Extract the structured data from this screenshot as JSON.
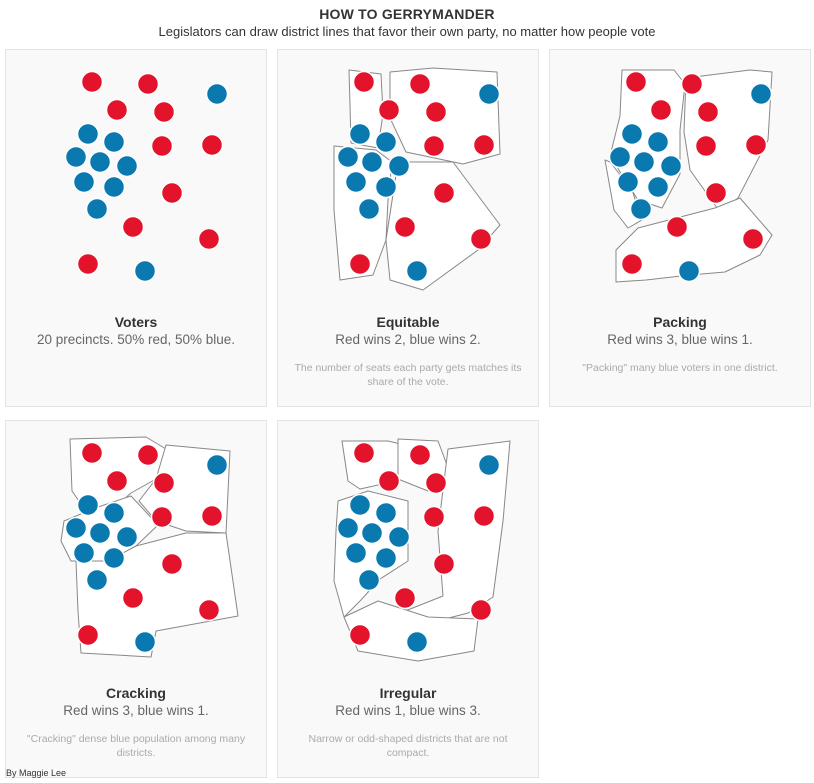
{
  "header": {
    "title": "HOW TO GERRYMANDER",
    "subtitle": "Legislators can draw district lines that favor their own party, no matter how people vote"
  },
  "colors": {
    "red": "#e3132b",
    "blue": "#0a79b0",
    "panel_bg": "#f9f9f9",
    "district_line": "#888888"
  },
  "precincts": [
    {
      "id": 1,
      "party": "red"
    },
    {
      "id": 2,
      "party": "red"
    },
    {
      "id": 3,
      "party": "blue"
    },
    {
      "id": 4,
      "party": "red"
    },
    {
      "id": 5,
      "party": "red"
    },
    {
      "id": 6,
      "party": "blue"
    },
    {
      "id": 7,
      "party": "blue"
    },
    {
      "id": 8,
      "party": "red"
    },
    {
      "id": 9,
      "party": "red"
    },
    {
      "id": 10,
      "party": "blue"
    },
    {
      "id": 11,
      "party": "blue"
    },
    {
      "id": 12,
      "party": "blue"
    },
    {
      "id": 13,
      "party": "blue"
    },
    {
      "id": 14,
      "party": "blue"
    },
    {
      "id": 15,
      "party": "red"
    },
    {
      "id": 16,
      "party": "blue"
    },
    {
      "id": 17,
      "party": "red"
    },
    {
      "id": 18,
      "party": "red"
    },
    {
      "id": 19,
      "party": "red"
    },
    {
      "id": 20,
      "party": "blue"
    }
  ],
  "panels": [
    {
      "key": "voters",
      "title": "Voters",
      "result": "20 precincts. 50% red, 50% blue.",
      "note": ""
    },
    {
      "key": "equitable",
      "title": "Equitable",
      "result": "Red wins 2, blue wins 2.",
      "note": "The number of seats each party gets matches its share of the vote."
    },
    {
      "key": "packing",
      "title": "Packing",
      "result": "Red wins 3, blue wins 1.",
      "note": "\"Packing\" many blue voters in one district."
    },
    {
      "key": "cracking",
      "title": "Cracking",
      "result": "Red wins 3, blue wins 1.",
      "note": "\"Cracking\" dense blue population among many districts."
    },
    {
      "key": "irregular",
      "title": "Irregular",
      "result": "Red wins 1, blue wins 3.",
      "note": "Narrow or odd-shaped districts that are not compact."
    }
  ],
  "credit": "By Maggie Lee"
}
